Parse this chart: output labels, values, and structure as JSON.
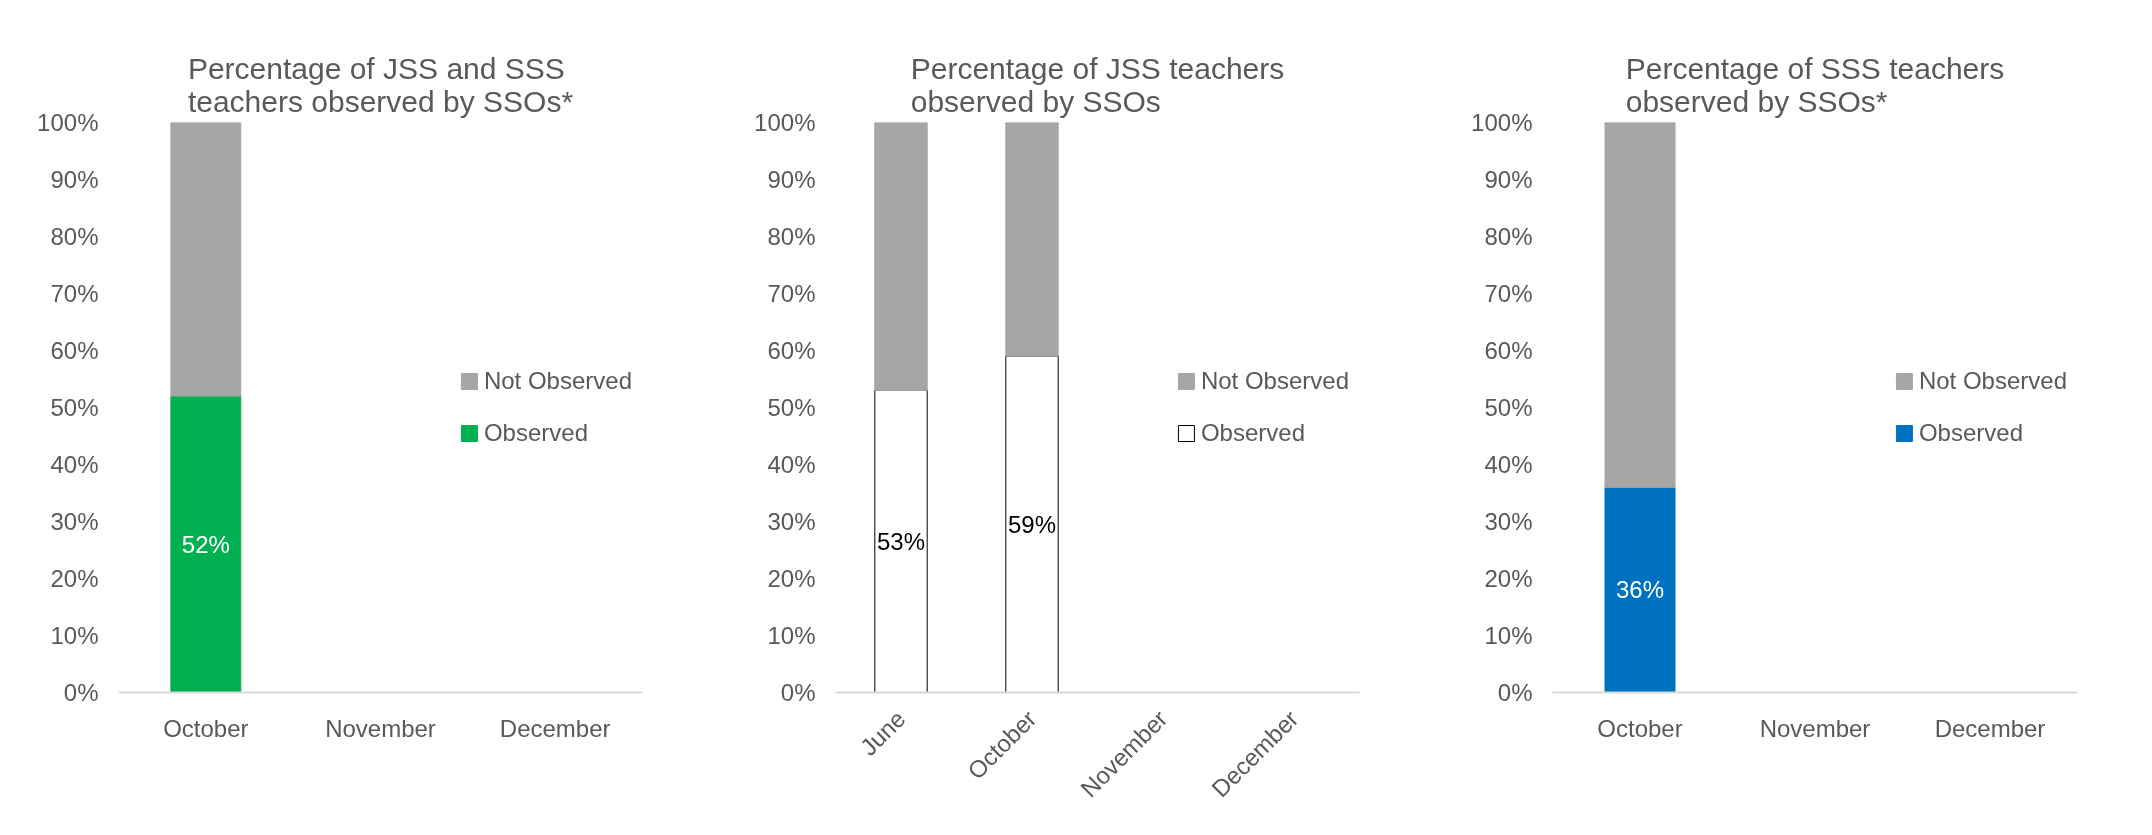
{
  "chart_data": [
    {
      "type": "bar",
      "title": "Percentage of JSS and SSS teachers observed by SSOs*",
      "categories": [
        "October",
        "November",
        "December"
      ],
      "stacked": true,
      "series": [
        {
          "name": "Observed",
          "color": "#00b050",
          "values": [
            52,
            null,
            null
          ],
          "value_labels": [
            "52%",
            null,
            null
          ]
        },
        {
          "name": "Not Observed",
          "color": "#a6a6a6",
          "values": [
            48,
            null,
            null
          ]
        }
      ],
      "ylim": [
        0,
        100
      ],
      "yticks": [
        {
          "value": 0,
          "label": "0%"
        },
        {
          "value": 10,
          "label": "10%"
        },
        {
          "value": 20,
          "label": "20%"
        },
        {
          "value": 30,
          "label": "30%"
        },
        {
          "value": 40,
          "label": "40%"
        },
        {
          "value": 50,
          "label": "50%"
        },
        {
          "value": 60,
          "label": "60%"
        },
        {
          "value": 70,
          "label": "70%"
        },
        {
          "value": 80,
          "label": "80%"
        },
        {
          "value": 90,
          "label": "90%"
        },
        {
          "value": 100,
          "label": "100%"
        }
      ],
      "grid": false,
      "legend": "right"
    },
    {
      "type": "bar",
      "title": "Percentage of JSS teachers observed by SSOs",
      "categories": [
        "June",
        "October",
        "November",
        "December"
      ],
      "stacked": true,
      "series": [
        {
          "name": "Observed",
          "color": "#ffffff",
          "values": [
            53,
            59,
            null,
            null
          ],
          "value_labels": [
            "53%",
            "59%",
            null,
            null
          ]
        },
        {
          "name": "Not Observed",
          "color": "#a6a6a6",
          "values": [
            47,
            41,
            null,
            null
          ]
        }
      ],
      "ylim": [
        0,
        100
      ],
      "yticks": [
        {
          "value": 0,
          "label": "0%"
        },
        {
          "value": 10,
          "label": "10%"
        },
        {
          "value": 20,
          "label": "20%"
        },
        {
          "value": 30,
          "label": "30%"
        },
        {
          "value": 40,
          "label": "40%"
        },
        {
          "value": 50,
          "label": "50%"
        },
        {
          "value": 60,
          "label": "60%"
        },
        {
          "value": 70,
          "label": "70%"
        },
        {
          "value": 80,
          "label": "80%"
        },
        {
          "value": 90,
          "label": "90%"
        },
        {
          "value": 100,
          "label": "100%"
        }
      ],
      "grid": false,
      "legend": "right"
    },
    {
      "type": "bar",
      "title": "Percentage of SSS teachers observed by SSOs*",
      "categories": [
        "October",
        "November",
        "December"
      ],
      "stacked": true,
      "series": [
        {
          "name": "Observed",
          "color": "#0070c0",
          "values": [
            36,
            null,
            null
          ],
          "value_labels": [
            "36%",
            null,
            null
          ]
        },
        {
          "name": "Not Observed",
          "color": "#a6a6a6",
          "values": [
            64,
            null,
            null
          ]
        }
      ],
      "ylim": [
        0,
        100
      ],
      "yticks": [
        {
          "value": 0,
          "label": "0%"
        },
        {
          "value": 10,
          "label": "10%"
        },
        {
          "value": 20,
          "label": "20%"
        },
        {
          "value": 30,
          "label": "30%"
        },
        {
          "value": 40,
          "label": "40%"
        },
        {
          "value": 50,
          "label": "50%"
        },
        {
          "value": 60,
          "label": "60%"
        },
        {
          "value": 70,
          "label": "70%"
        },
        {
          "value": 80,
          "label": "80%"
        },
        {
          "value": 90,
          "label": "90%"
        },
        {
          "value": 100,
          "label": "100%"
        }
      ],
      "grid": false,
      "legend": "right"
    }
  ]
}
